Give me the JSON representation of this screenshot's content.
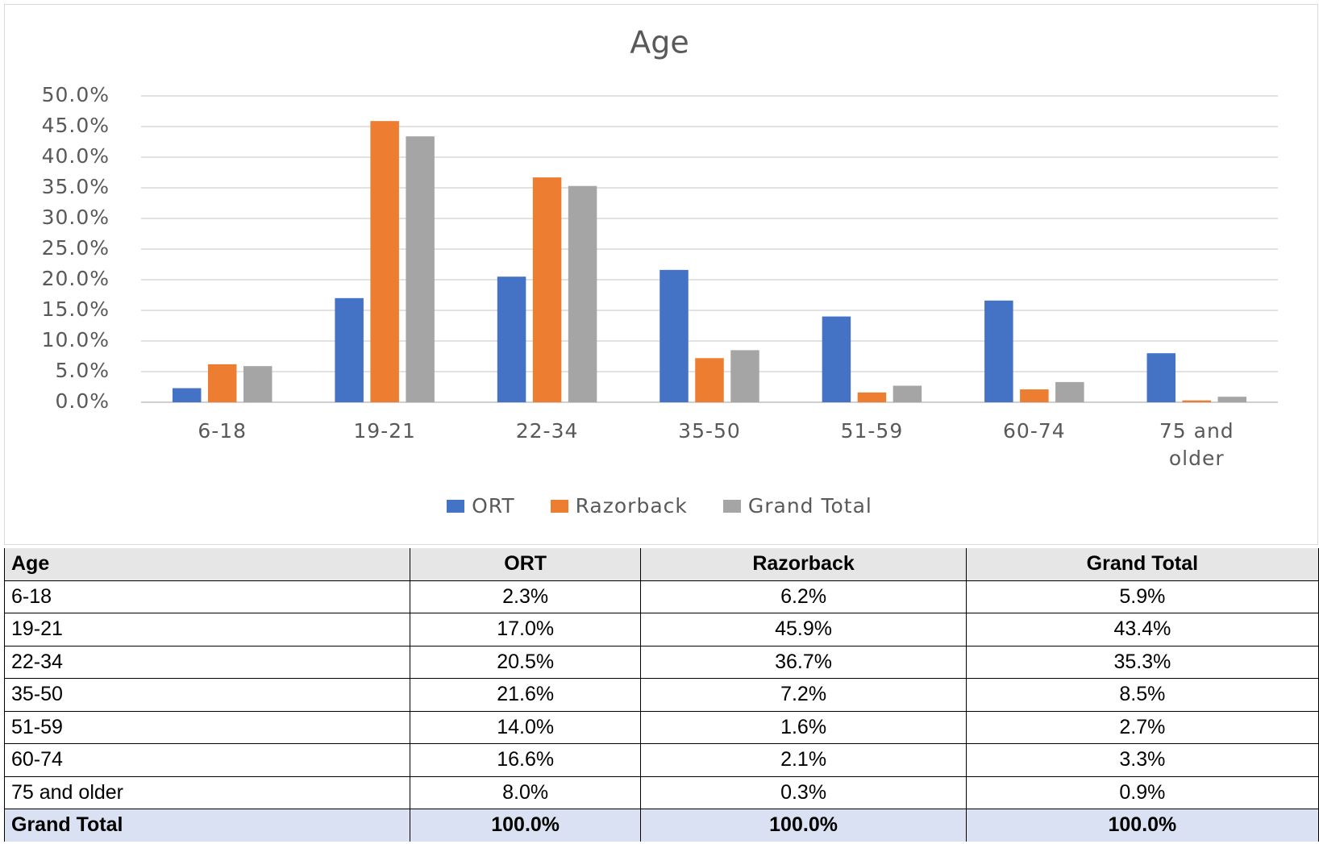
{
  "chart_data": {
    "type": "bar",
    "title": "Age",
    "categories": [
      "6-18",
      "19-21",
      "22-34",
      "35-50",
      "51-59",
      "60-74",
      "75 and older"
    ],
    "series": [
      {
        "name": "ORT",
        "color": "#4472c4",
        "values": [
          2.3,
          17.0,
          20.5,
          21.6,
          14.0,
          16.6,
          8.0
        ]
      },
      {
        "name": "Razorback",
        "color": "#ed7d31",
        "values": [
          6.2,
          45.9,
          36.7,
          7.2,
          1.6,
          2.1,
          0.3
        ]
      },
      {
        "name": "Grand Total",
        "color": "#a5a5a5",
        "values": [
          5.9,
          43.4,
          35.3,
          8.5,
          2.7,
          3.3,
          0.9
        ]
      }
    ],
    "ylim": [
      0,
      50
    ],
    "yticks": [
      {
        "value": 0,
        "label": "0.0%"
      },
      {
        "value": 5,
        "label": "5.0%"
      },
      {
        "value": 10,
        "label": "10.0%"
      },
      {
        "value": 15,
        "label": "15.0%"
      },
      {
        "value": 20,
        "label": "20.0%"
      },
      {
        "value": 25,
        "label": "25.0%"
      },
      {
        "value": 30,
        "label": "30.0%"
      },
      {
        "value": 35,
        "label": "35.0%"
      },
      {
        "value": 40,
        "label": "40.0%"
      },
      {
        "value": 45,
        "label": "45.0%"
      },
      {
        "value": 50,
        "label": "50.0%"
      }
    ],
    "grid": true,
    "legend": "bottom"
  },
  "table": {
    "header": [
      "Age",
      "ORT",
      "Razorback",
      "Grand Total"
    ],
    "rows": [
      [
        "6-18",
        "2.3%",
        "6.2%",
        "5.9%"
      ],
      [
        "19-21",
        "17.0%",
        "45.9%",
        "43.4%"
      ],
      [
        "22-34",
        "20.5%",
        "36.7%",
        "35.3%"
      ],
      [
        "35-50",
        "21.6%",
        "7.2%",
        "8.5%"
      ],
      [
        "51-59",
        "14.0%",
        "1.6%",
        "2.7%"
      ],
      [
        "60-74",
        "16.6%",
        "2.1%",
        "3.3%"
      ],
      [
        "75 and older",
        "8.0%",
        "0.3%",
        "0.9%"
      ]
    ],
    "total": [
      "Grand Total",
      "100.0%",
      "100.0%",
      "100.0%"
    ]
  }
}
